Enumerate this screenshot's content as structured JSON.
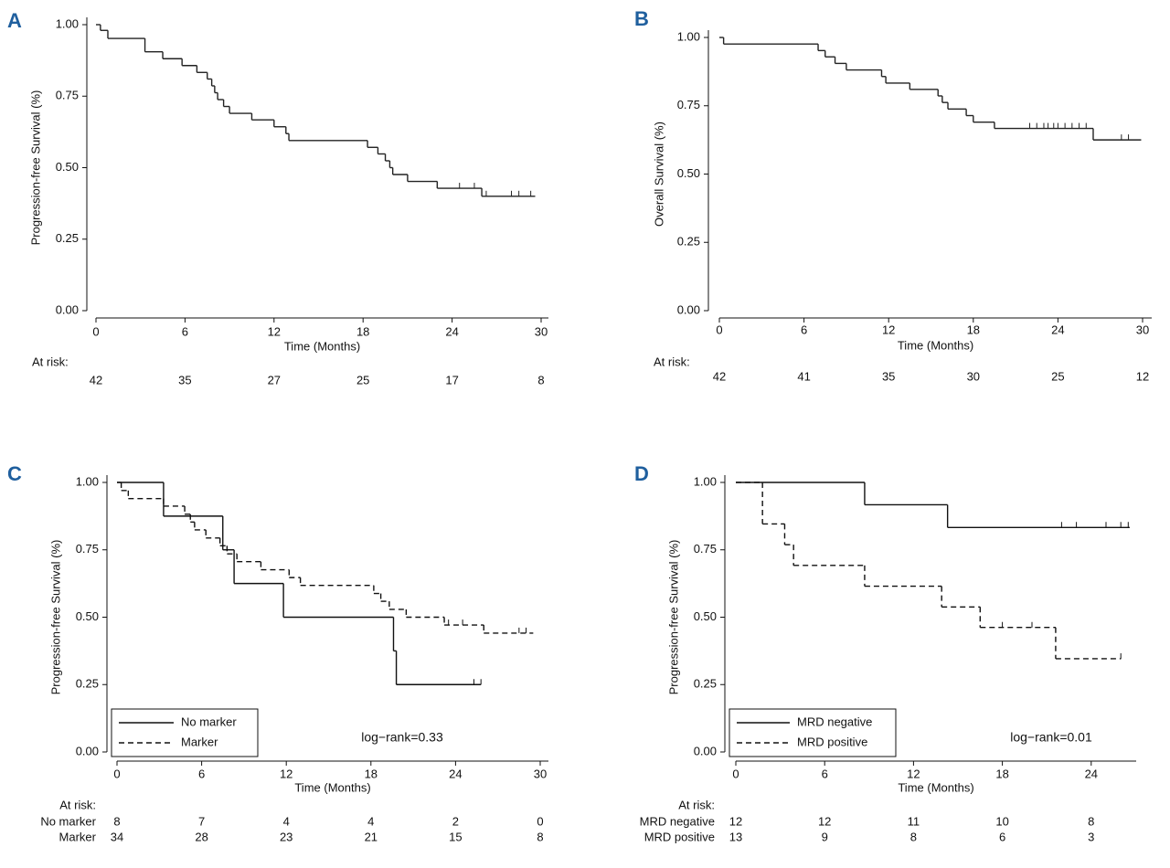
{
  "chart_data": [
    {
      "type": "step",
      "panel": "A",
      "y_label": "Progression-free Survival (%)",
      "x_label": "Time (Months)",
      "xlim": [
        0,
        30
      ],
      "ylim": [
        0,
        1
      ],
      "xticks": [
        0,
        6,
        12,
        18,
        24,
        30
      ],
      "yticks": [
        {
          "value": 0,
          "label": "0.00"
        },
        0.25,
        {
          "value": 0.5,
          "label": "0.50"
        },
        0.75,
        {
          "value": 1,
          "label": "1.00"
        }
      ],
      "series": [
        {
          "color": "#222",
          "dash": false,
          "x": [
            0,
            0.3,
            0.8,
            3.3,
            4.5,
            5.8,
            6.8,
            7.5,
            7.8,
            8.0,
            8.2,
            8.6,
            9,
            10.5,
            12,
            12.8,
            13,
            18.3,
            19,
            19.5,
            19.8,
            20,
            21,
            23,
            26,
            29.6
          ],
          "values": [
            1,
            0.98,
            0.952,
            0.905,
            0.881,
            0.857,
            0.833,
            0.81,
            0.786,
            0.762,
            0.738,
            0.714,
            0.69,
            0.667,
            0.643,
            0.619,
            0.595,
            0.571,
            0.548,
            0.524,
            0.5,
            0.476,
            0.452,
            0.428,
            0.4,
            0.4
          ],
          "censored": [
            23,
            24.5,
            25.5,
            26.3,
            28,
            28.5,
            29.3
          ]
        }
      ],
      "risk_title": "At risk:",
      "risk_rows": [
        {
          "values": [
            42,
            35,
            27,
            25,
            17,
            8
          ]
        }
      ]
    },
    {
      "type": "step",
      "panel": "B",
      "y_label": "Overall Survival (%)",
      "x_label": "Time (Months)",
      "xlim": [
        0,
        30
      ],
      "ylim": [
        0,
        1
      ],
      "xticks": [
        0,
        6,
        12,
        18,
        24,
        30
      ],
      "yticks": [
        {
          "value": 0,
          "label": "0.00"
        },
        0.25,
        {
          "value": 0.5,
          "label": "0.50"
        },
        0.75,
        {
          "value": 1,
          "label": "1.00"
        }
      ],
      "series": [
        {
          "color": "#222",
          "dash": false,
          "x": [
            0,
            0.3,
            7,
            7.5,
            8.2,
            9,
            11.5,
            11.8,
            13.5,
            15.5,
            15.8,
            16.2,
            17.5,
            18,
            19.5,
            26.5,
            29.9
          ],
          "values": [
            1,
            0.976,
            0.952,
            0.929,
            0.905,
            0.881,
            0.857,
            0.833,
            0.81,
            0.786,
            0.762,
            0.738,
            0.714,
            0.69,
            0.667,
            0.625,
            0.625
          ],
          "censored": [
            22,
            22.5,
            23,
            23.3,
            23.7,
            24,
            24.5,
            25,
            25.5,
            26,
            28.5,
            29
          ]
        }
      ],
      "risk_title": "At risk:",
      "risk_rows": [
        {
          "values": [
            42,
            41,
            35,
            30,
            25,
            12
          ]
        }
      ]
    },
    {
      "type": "step",
      "panel": "C",
      "y_label": "Progression-free Survival (%)",
      "x_label": "Time (Months)",
      "xlim": [
        0,
        30
      ],
      "ylim": [
        0,
        1
      ],
      "xticks": [
        0,
        6,
        12,
        18,
        24,
        30
      ],
      "yticks": [
        {
          "value": 0,
          "label": "0.00"
        },
        0.25,
        {
          "value": 0.5,
          "label": "0.50"
        },
        0.75,
        {
          "value": 1,
          "label": "1.00"
        }
      ],
      "series": [
        {
          "name": "No marker",
          "color": "#111",
          "dash": false,
          "x": [
            0,
            3.3,
            7.5,
            8.3,
            11.8,
            19.6,
            19.8,
            25.8
          ],
          "values": [
            1,
            0.875,
            0.75,
            0.625,
            0.5,
            0.375,
            0.25,
            0.25
          ],
          "censored": [
            25.3,
            25.8
          ]
        },
        {
          "name": "Marker",
          "color": "#111",
          "dash": true,
          "x": [
            0,
            0.3,
            0.8,
            3.3,
            4.8,
            5.2,
            5.5,
            6.3,
            7.3,
            7.8,
            8.5,
            10.2,
            12.2,
            13,
            18.2,
            18.7,
            19.3,
            20.5,
            23.2,
            26,
            29.5
          ],
          "values": [
            1,
            0.97,
            0.94,
            0.912,
            0.882,
            0.853,
            0.824,
            0.794,
            0.765,
            0.735,
            0.706,
            0.676,
            0.647,
            0.618,
            0.588,
            0.559,
            0.529,
            0.5,
            0.471,
            0.441,
            0.441
          ],
          "censored": [
            23.5,
            24.5,
            28.5,
            29
          ]
        }
      ],
      "legend": "lower left",
      "annotation": "log−rank=0.33",
      "risk_title": "At risk:",
      "risk_rows": [
        {
          "name": "No marker",
          "values": [
            8,
            7,
            4,
            4,
            2,
            0
          ]
        },
        {
          "name": "Marker",
          "values": [
            34,
            28,
            23,
            21,
            15,
            8
          ]
        }
      ]
    },
    {
      "type": "step",
      "panel": "D",
      "y_label": "Progression-free Survival (%)",
      "x_label": "Time (Months)",
      "xlim": [
        0,
        27
      ],
      "ylim": [
        0,
        1
      ],
      "xticks": [
        0,
        6,
        12,
        18,
        24
      ],
      "yticks": [
        {
          "value": 0,
          "label": "0.00"
        },
        0.25,
        {
          "value": 0.5,
          "label": "0.50"
        },
        0.75,
        {
          "value": 1,
          "label": "1.00"
        }
      ],
      "series": [
        {
          "name": "MRD negative",
          "color": "#111",
          "dash": false,
          "x": [
            0,
            8.7,
            14.3,
            26.6
          ],
          "values": [
            1,
            0.917,
            0.833,
            0.833
          ],
          "censored": [
            22,
            23,
            25,
            26,
            26.5
          ]
        },
        {
          "name": "MRD positive",
          "color": "#111",
          "dash": true,
          "x": [
            0,
            1.8,
            3.3,
            3.9,
            8.7,
            13.9,
            16.5,
            21.6,
            26
          ],
          "values": [
            1,
            0.846,
            0.769,
            0.692,
            0.615,
            0.538,
            0.462,
            0.346,
            0.346
          ],
          "censored": [
            18,
            20,
            26
          ]
        }
      ],
      "legend": "lower left",
      "annotation": "log−rank=0.01",
      "risk_title": "At risk:",
      "risk_rows": [
        {
          "name": "MRD negative",
          "values": [
            12,
            12,
            11,
            10,
            8
          ]
        },
        {
          "name": "MRD positive",
          "values": [
            13,
            9,
            8,
            6,
            3
          ]
        }
      ]
    }
  ]
}
